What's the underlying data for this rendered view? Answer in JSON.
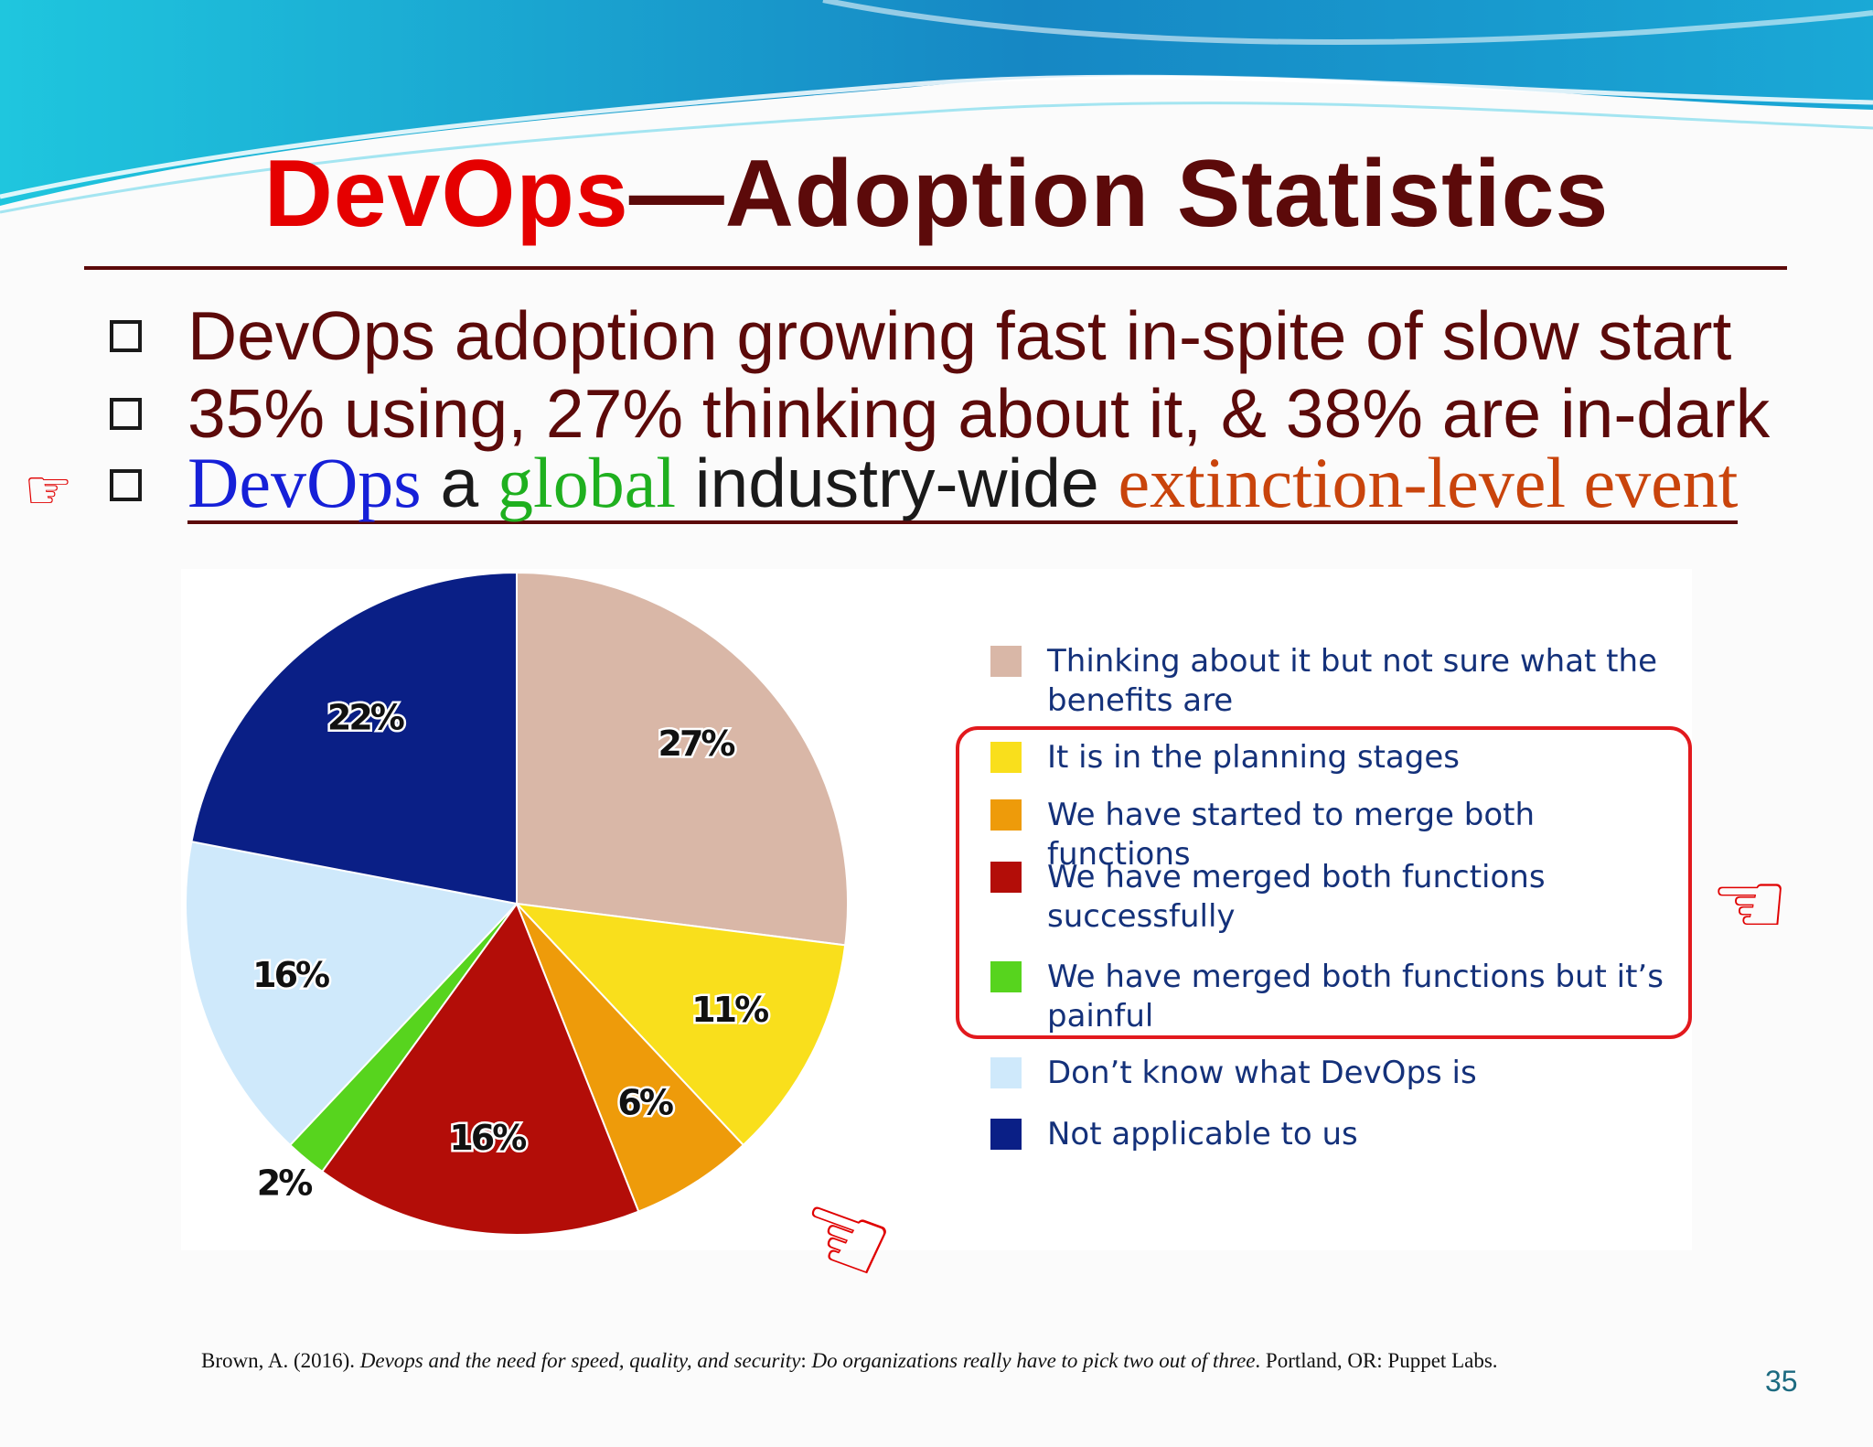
{
  "title": {
    "part1": "DevOps",
    "part2": "—Adoption Statistics"
  },
  "bullets": {
    "b1": "DevOps adoption growing fast in-spite of slow start",
    "b2": "35% using, 27% thinking about it, & 38% are in-dark",
    "b3": {
      "w1": "DevOps",
      "w2": " a ",
      "w3": "global",
      "w4": " industry-wide ",
      "w5": "extinction-level event"
    }
  },
  "icons": {
    "pointer_left": "☞",
    "pointer_right_box": "☜",
    "pointer_chart": "☜"
  },
  "colors": {
    "title_red": "#e50000",
    "title_dark": "#5c0a0a",
    "highlight_box": "#e2191d",
    "word_blue": "#1620d8",
    "word_green": "#1fb01f",
    "word_orange": "#c9440c"
  },
  "chart_data": {
    "type": "pie",
    "start_angle_deg": 0,
    "direction": "clockwise",
    "slices": [
      {
        "label": "Thinking about it but not sure what the benefits are",
        "value": 27,
        "display": "27%",
        "color": "#d9b7a7"
      },
      {
        "label": "It is in the planning stages",
        "value": 11,
        "display": "11%",
        "color": "#f9df1c"
      },
      {
        "label": "We have started to merge both functions",
        "value": 6,
        "display": "6%",
        "color": "#ee9b0a"
      },
      {
        "label": "We have merged both functions successfully",
        "value": 16,
        "display": "16%",
        "color": "#b30d08"
      },
      {
        "label": "We have merged both functions but it’s painful",
        "value": 2,
        "display": "2%",
        "color": "#57d41e"
      },
      {
        "label": "Don’t know what DevOps is",
        "value": 16,
        "display": "16%",
        "color": "#cfe9fb"
      },
      {
        "label": "Not applicable to us",
        "value": 22,
        "display": "22%",
        "color": "#0a1f86"
      }
    ],
    "legend_position": "right",
    "highlighted_legend_items": [
      1,
      2,
      3,
      4
    ]
  },
  "citation": {
    "author": "Brown, A. (2016). ",
    "title_italic": "Devops and the need for speed, quality, and security",
    "sep": ": ",
    "subtitle_italic": "Do organizations really have to pick two out of three",
    "publisher": ". Portland, OR: Puppet Labs."
  },
  "page_number": "35"
}
